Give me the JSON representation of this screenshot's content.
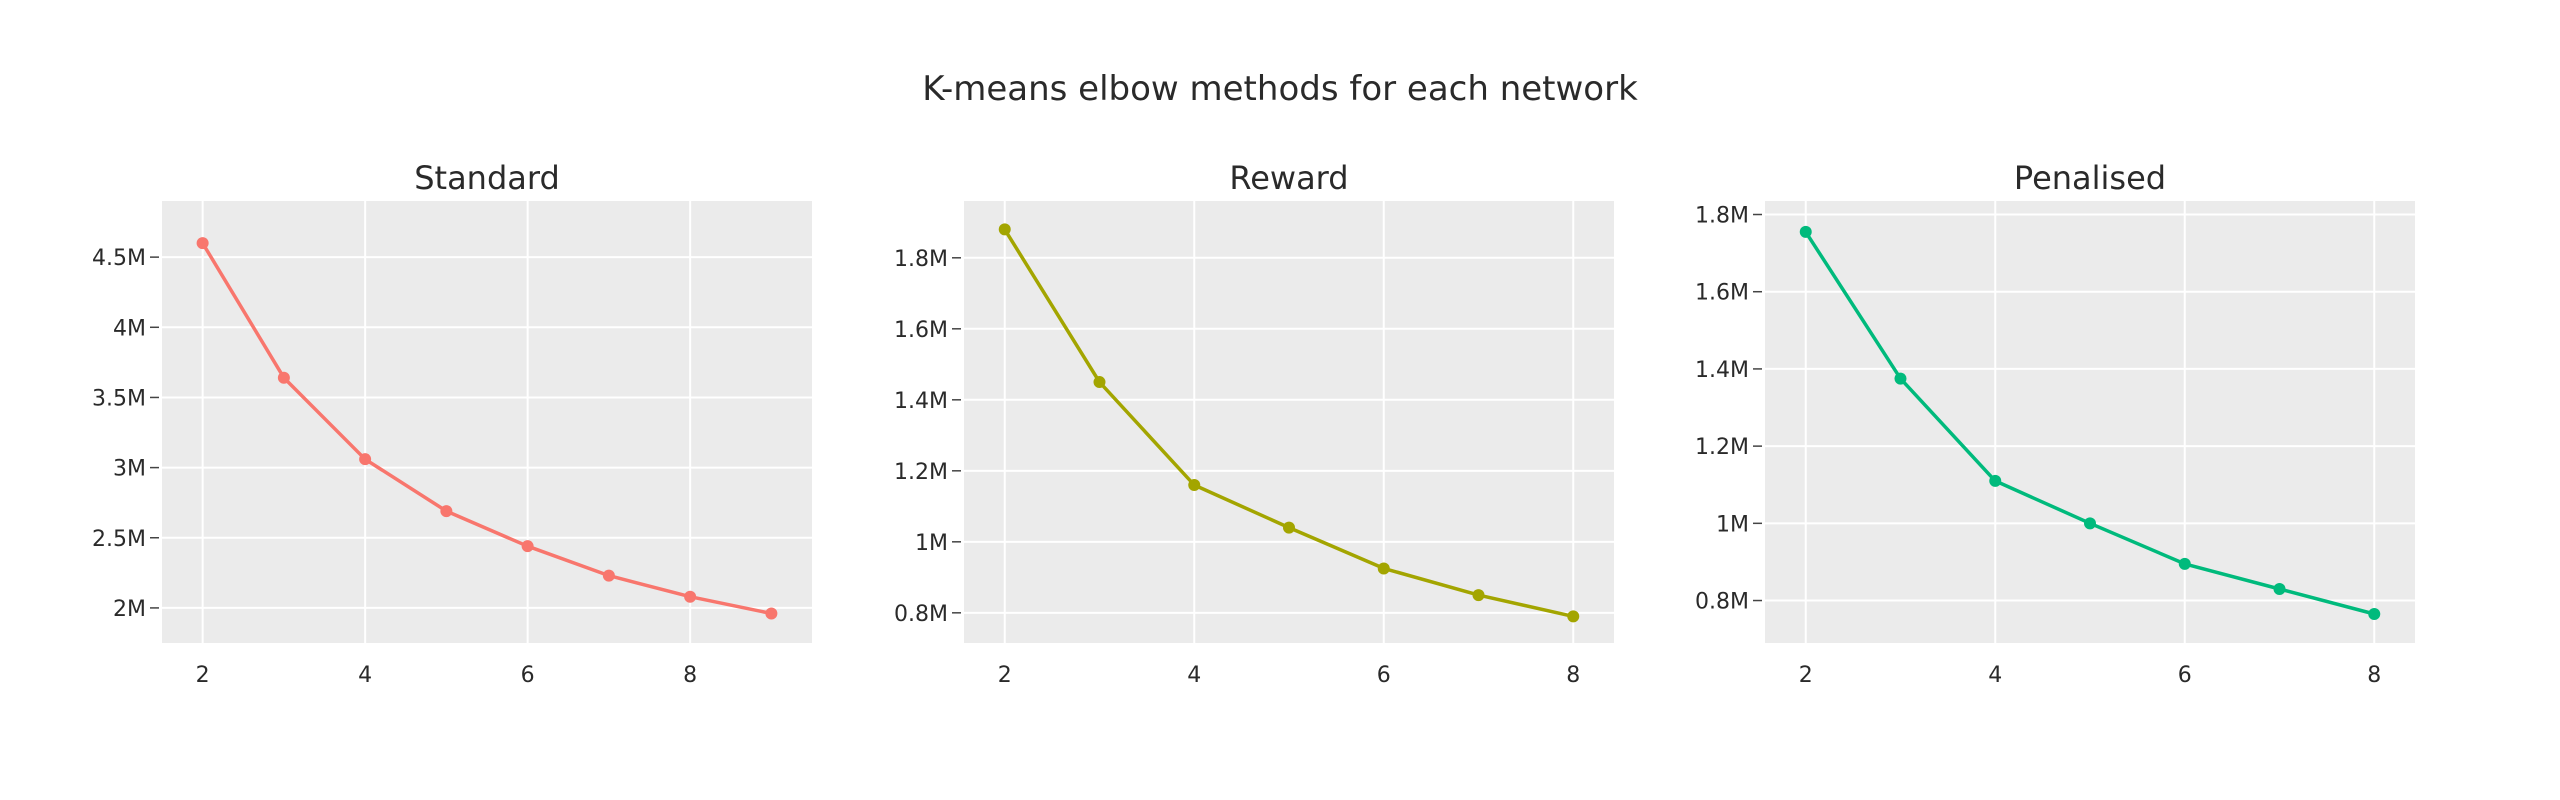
{
  "title": "K-means elbow methods for each network",
  "chart_data": [
    {
      "type": "line",
      "title": "Standard",
      "color": "#F8766D",
      "x": [
        2,
        3,
        4,
        5,
        6,
        7,
        8,
        9
      ],
      "y": [
        4600000,
        3640000,
        3060000,
        2690000,
        2440000,
        2230000,
        2080000,
        1960000
      ],
      "xlim": [
        1.5,
        9.5
      ],
      "ylim": [
        1750000,
        4900000
      ],
      "xticks": [
        2,
        4,
        6,
        8
      ],
      "xtick_labels": [
        "2",
        "4",
        "6",
        "8"
      ],
      "yticks": [
        2000000,
        2500000,
        3000000,
        3500000,
        4000000,
        4500000
      ],
      "ytick_labels": [
        "2M",
        "2.5M",
        "3M",
        "3.5M",
        "4M",
        "4.5M"
      ],
      "grid": true,
      "legend": "none"
    },
    {
      "type": "line",
      "title": "Reward",
      "color": "#A3A500",
      "x": [
        2,
        3,
        4,
        5,
        6,
        7,
        8
      ],
      "y": [
        1880000,
        1450000,
        1160000,
        1040000,
        925000,
        850000,
        790000
      ],
      "xlim": [
        1.57,
        8.43
      ],
      "ylim": [
        715000,
        1960000
      ],
      "xticks": [
        2,
        4,
        6,
        8
      ],
      "xtick_labels": [
        "2",
        "4",
        "6",
        "8"
      ],
      "yticks": [
        800000,
        1000000,
        1200000,
        1400000,
        1600000,
        1800000
      ],
      "ytick_labels": [
        "0.8M",
        "1M",
        "1.2M",
        "1.4M",
        "1.6M",
        "1.8M"
      ],
      "grid": true,
      "legend": "none"
    },
    {
      "type": "line",
      "title": "Penalised",
      "color": "#00BA7C",
      "x": [
        2,
        3,
        4,
        5,
        6,
        7,
        8
      ],
      "y": [
        1755000,
        1375000,
        1110000,
        1000000,
        895000,
        830000,
        765000
      ],
      "xlim": [
        1.57,
        8.43
      ],
      "ylim": [
        690000,
        1835000
      ],
      "xticks": [
        2,
        4,
        6,
        8
      ],
      "xtick_labels": [
        "2",
        "4",
        "6",
        "8"
      ],
      "yticks": [
        800000,
        1000000,
        1200000,
        1400000,
        1600000,
        1800000
      ],
      "ytick_labels": [
        "0.8M",
        "1M",
        "1.2M",
        "1.4M",
        "1.6M",
        "1.8M"
      ],
      "grid": true,
      "legend": "none"
    }
  ]
}
